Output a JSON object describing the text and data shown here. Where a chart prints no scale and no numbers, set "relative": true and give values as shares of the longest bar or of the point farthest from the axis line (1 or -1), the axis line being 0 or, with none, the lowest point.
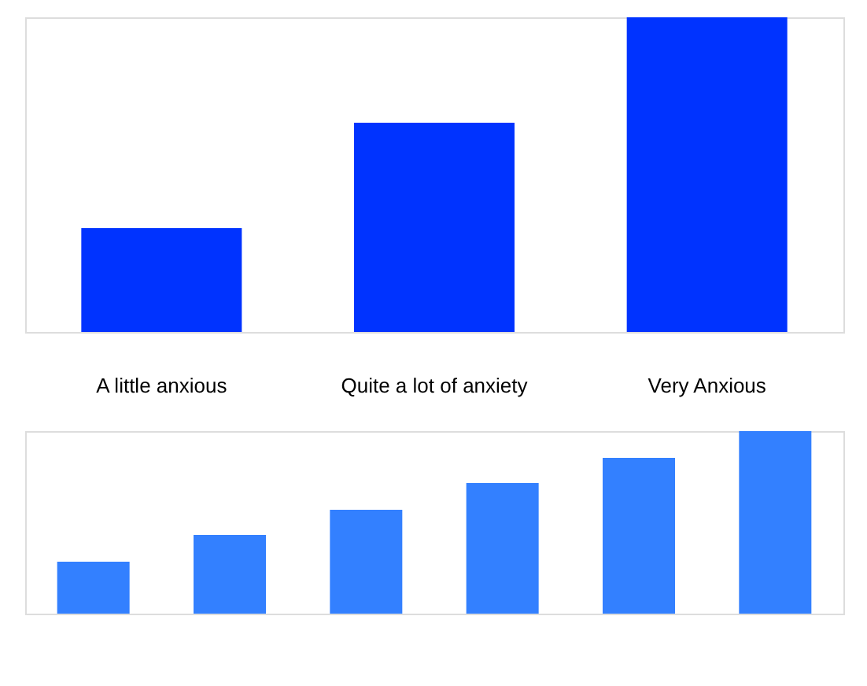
{
  "chart_data": [
    {
      "type": "bar",
      "relative": true,
      "categories": [
        "A little anxious",
        "Quite a lot of anxiety",
        "Very Anxious"
      ],
      "values": [
        0.33,
        0.665,
        1
      ],
      "color": "#0033ff"
    },
    {
      "type": "bar",
      "relative": true,
      "categories": [
        null,
        null,
        null,
        null,
        null,
        null
      ],
      "values": [
        0.284,
        0.431,
        0.569,
        0.716,
        0.853,
        1
      ],
      "color": "#3380ff"
    }
  ]
}
